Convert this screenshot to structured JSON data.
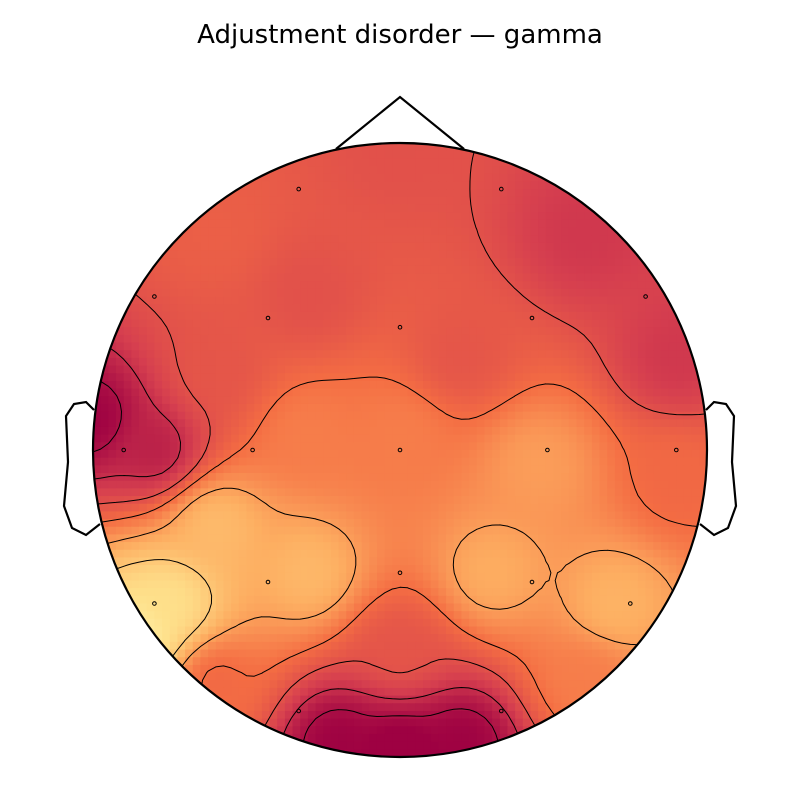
{
  "chart_data": {
    "type": "heatmap",
    "subtype": "scalp-topographic-map",
    "title": "Adjustment disorder — gamma",
    "colormap": [
      "#9e0142",
      "#d53e4f",
      "#f46d43",
      "#fdae61",
      "#fee08b",
      "#ffffbf"
    ],
    "colormap_name": "Spectral (reversed, high values dark red)",
    "colorbar": false,
    "sensors": [
      {
        "id": 1,
        "x": -0.33,
        "y": 0.85
      },
      {
        "id": 2,
        "x": 0.33,
        "y": 0.85
      },
      {
        "id": 3,
        "x": -0.8,
        "y": 0.5
      },
      {
        "id": 4,
        "x": -0.43,
        "y": 0.43
      },
      {
        "id": 5,
        "x": 0.0,
        "y": 0.4
      },
      {
        "id": 6,
        "x": 0.43,
        "y": 0.43
      },
      {
        "id": 7,
        "x": 0.8,
        "y": 0.5
      },
      {
        "id": 8,
        "x": -0.9,
        "y": 0.0
      },
      {
        "id": 9,
        "x": -0.48,
        "y": 0.0
      },
      {
        "id": 10,
        "x": 0.0,
        "y": 0.0
      },
      {
        "id": 11,
        "x": 0.48,
        "y": 0.0
      },
      {
        "id": 12,
        "x": 0.9,
        "y": 0.0
      },
      {
        "id": 13,
        "x": -0.8,
        "y": -0.5
      },
      {
        "id": 14,
        "x": -0.43,
        "y": -0.43
      },
      {
        "id": 15,
        "x": 0.0,
        "y": -0.4
      },
      {
        "id": 16,
        "x": 0.43,
        "y": -0.43
      },
      {
        "id": 17,
        "x": 0.75,
        "y": -0.5
      },
      {
        "id": 18,
        "x": -0.33,
        "y": -0.85
      },
      {
        "id": 19,
        "x": 0.33,
        "y": -0.85
      }
    ],
    "sources": [
      {
        "x": 0.0,
        "y": 1.0,
        "value": 0.72
      },
      {
        "x": 0.6,
        "y": 0.7,
        "value": 0.82
      },
      {
        "x": -0.6,
        "y": 0.7,
        "value": 0.66
      },
      {
        "x": 0.9,
        "y": 0.3,
        "value": 0.82
      },
      {
        "x": -0.3,
        "y": 0.5,
        "value": 0.72
      },
      {
        "x": 0.2,
        "y": 0.3,
        "value": 0.7
      },
      {
        "x": -1.0,
        "y": 0.1,
        "value": 1.0
      },
      {
        "x": -0.8,
        "y": 0.0,
        "value": 0.9
      },
      {
        "x": -0.6,
        "y": 0.25,
        "value": 0.7
      },
      {
        "x": 0.0,
        "y": 0.05,
        "value": 0.55
      },
      {
        "x": -0.3,
        "y": 0.05,
        "value": 0.55
      },
      {
        "x": 0.45,
        "y": -0.05,
        "value": 0.45
      },
      {
        "x": 0.9,
        "y": -0.1,
        "value": 0.62
      },
      {
        "x": -0.6,
        "y": -0.25,
        "value": 0.35
      },
      {
        "x": -0.75,
        "y": -0.5,
        "value": 0.2
      },
      {
        "x": -0.85,
        "y": -0.6,
        "value": 0.12
      },
      {
        "x": -0.3,
        "y": -0.4,
        "value": 0.36
      },
      {
        "x": 0.3,
        "y": -0.4,
        "value": 0.4
      },
      {
        "x": 0.7,
        "y": -0.5,
        "value": 0.38
      },
      {
        "x": -0.6,
        "y": -0.75,
        "value": 0.62
      },
      {
        "x": 0.6,
        "y": -0.75,
        "value": 0.55
      },
      {
        "x": 0.0,
        "y": -0.65,
        "value": 0.7
      },
      {
        "x": 0.0,
        "y": -1.0,
        "value": 1.05
      },
      {
        "x": -0.2,
        "y": -0.95,
        "value": 1.0
      },
      {
        "x": 0.2,
        "y": -0.95,
        "value": 1.0
      }
    ],
    "contour_levels": [
      0.3,
      0.45,
      0.6,
      0.72,
      0.85,
      0.95
    ]
  }
}
